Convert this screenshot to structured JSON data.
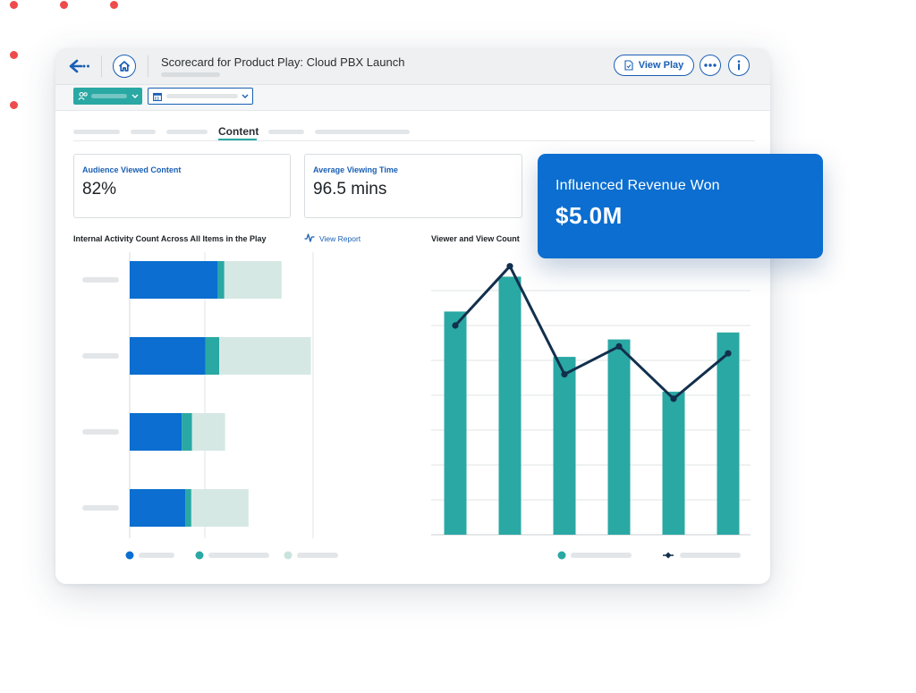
{
  "window": {
    "title": "Scorecard for Product Play: Cloud PBX Launch",
    "view_play_label": "View Play"
  },
  "tabs": {
    "active_label": "Content"
  },
  "stats": [
    {
      "label": "Audience Viewed Content",
      "value": "82%"
    },
    {
      "label": "Average Viewing Time",
      "value": "96.5 mins"
    }
  ],
  "revenue": {
    "label": "Influenced Revenue Won",
    "value": "$5.0M"
  },
  "colors": {
    "primary_blue": "#0b6ed0",
    "teal": "#2aa8a4",
    "light_teal": "#d5e8e4",
    "navy": "#12304d"
  },
  "icons": [
    "back-arrow-icon",
    "home-icon",
    "document-icon",
    "more-icon",
    "info-icon",
    "audience-icon",
    "calendar-icon",
    "chevron-down-icon",
    "activity-icon"
  ],
  "chart_data": [
    {
      "type": "bar",
      "orientation": "horizontal",
      "stacked": true,
      "title": "Internal Activity Count Across All Items in the Play",
      "link_label": "View Report",
      "categories": [
        "",
        "",
        "",
        ""
      ],
      "series": [
        {
          "values": [
            120,
            103,
            71,
            76
          ],
          "color": "#0b6ed0"
        },
        {
          "values": [
            9,
            19,
            14,
            8
          ],
          "color": "#2aa8a4"
        },
        {
          "values": [
            78,
            125,
            45,
            78
          ],
          "color": "#d5e8e4"
        }
      ],
      "xlim": [
        0,
        250
      ],
      "grid": true
    },
    {
      "type": "bar",
      "title": "Viewer and View Count",
      "categories": [
        "",
        "",
        "",
        "",
        "",
        ""
      ],
      "series": [
        {
          "kind": "bar",
          "values": [
            64,
            74,
            51,
            56,
            41,
            58
          ],
          "color": "#2aa8a4"
        },
        {
          "kind": "line",
          "values": [
            60,
            77,
            46,
            54,
            39,
            52
          ],
          "color": "#12304d"
        }
      ],
      "ylim": [
        0,
        80
      ],
      "grid": true
    }
  ]
}
